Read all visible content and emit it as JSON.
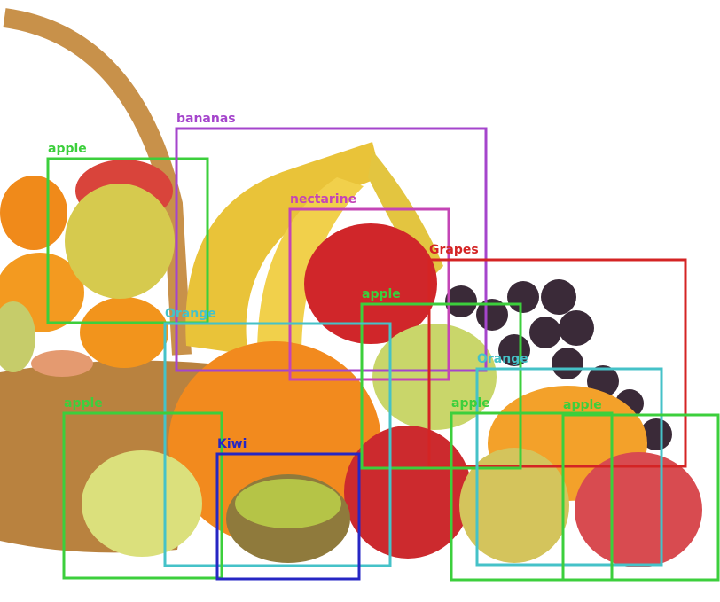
{
  "detections": [
    {
      "label": "apple",
      "color": "#3ccf3c"
    },
    {
      "label": "bananas",
      "color": "#a545cc"
    },
    {
      "label": "nectarine",
      "color": "#c445b6"
    },
    {
      "label": "Grapes",
      "color": "#d42424"
    },
    {
      "label": "apple",
      "color": "#3ccf3c"
    },
    {
      "label": "Orange",
      "color": "#45c2c8"
    },
    {
      "label": "Orange",
      "color": "#45c2c8"
    },
    {
      "label": "apple",
      "color": "#3ccf3c"
    },
    {
      "label": "Kiwi",
      "color": "#2626c4"
    },
    {
      "label": "apple",
      "color": "#3ccf3c"
    },
    {
      "label": "apple",
      "color": "#3ccf3c"
    }
  ]
}
